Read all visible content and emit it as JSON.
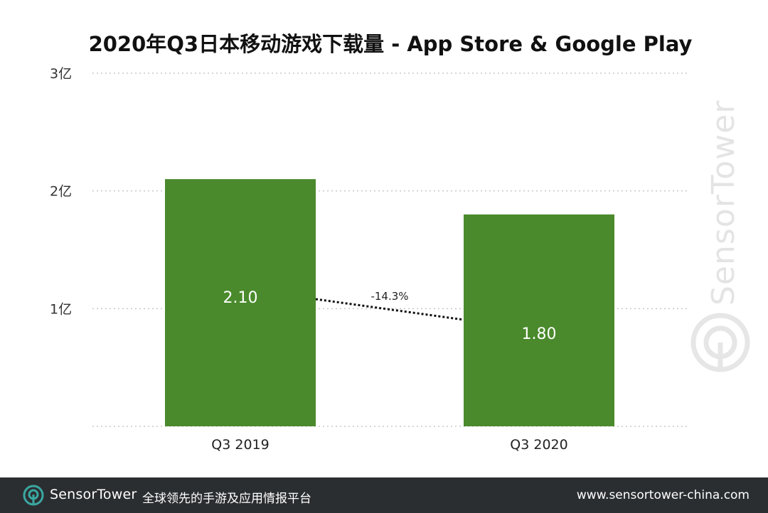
{
  "chart_data": {
    "type": "bar",
    "title": "2020年Q3日本移动游戏下载量 - App Store & Google Play",
    "categories": [
      "Q3  2019",
      "Q3 2020"
    ],
    "values": [
      2.1,
      1.8
    ],
    "value_labels": [
      "2.10",
      "1.80"
    ],
    "ylim": [
      0,
      3
    ],
    "yticks": [
      1,
      2,
      3
    ],
    "ytick_labels": [
      "1亿",
      "2亿",
      "3亿"
    ],
    "xlabel": "",
    "ylabel": "",
    "grid": true,
    "bar_color": "#4a8a2c",
    "annotation": {
      "text": "-14.3%",
      "from_category": 0,
      "to_category": 1
    }
  },
  "watermark": {
    "text": "SensorTower",
    "color": "#e6e6e6"
  },
  "footer": {
    "brand_part1": "Sensor",
    "brand_part2": "Tower",
    "tagline": "全球领先的手游及应用情报平台",
    "url": "www.sensortower-china.com",
    "logo_icon": "sensortower-logo-icon",
    "accent": "#3aa7a0"
  }
}
